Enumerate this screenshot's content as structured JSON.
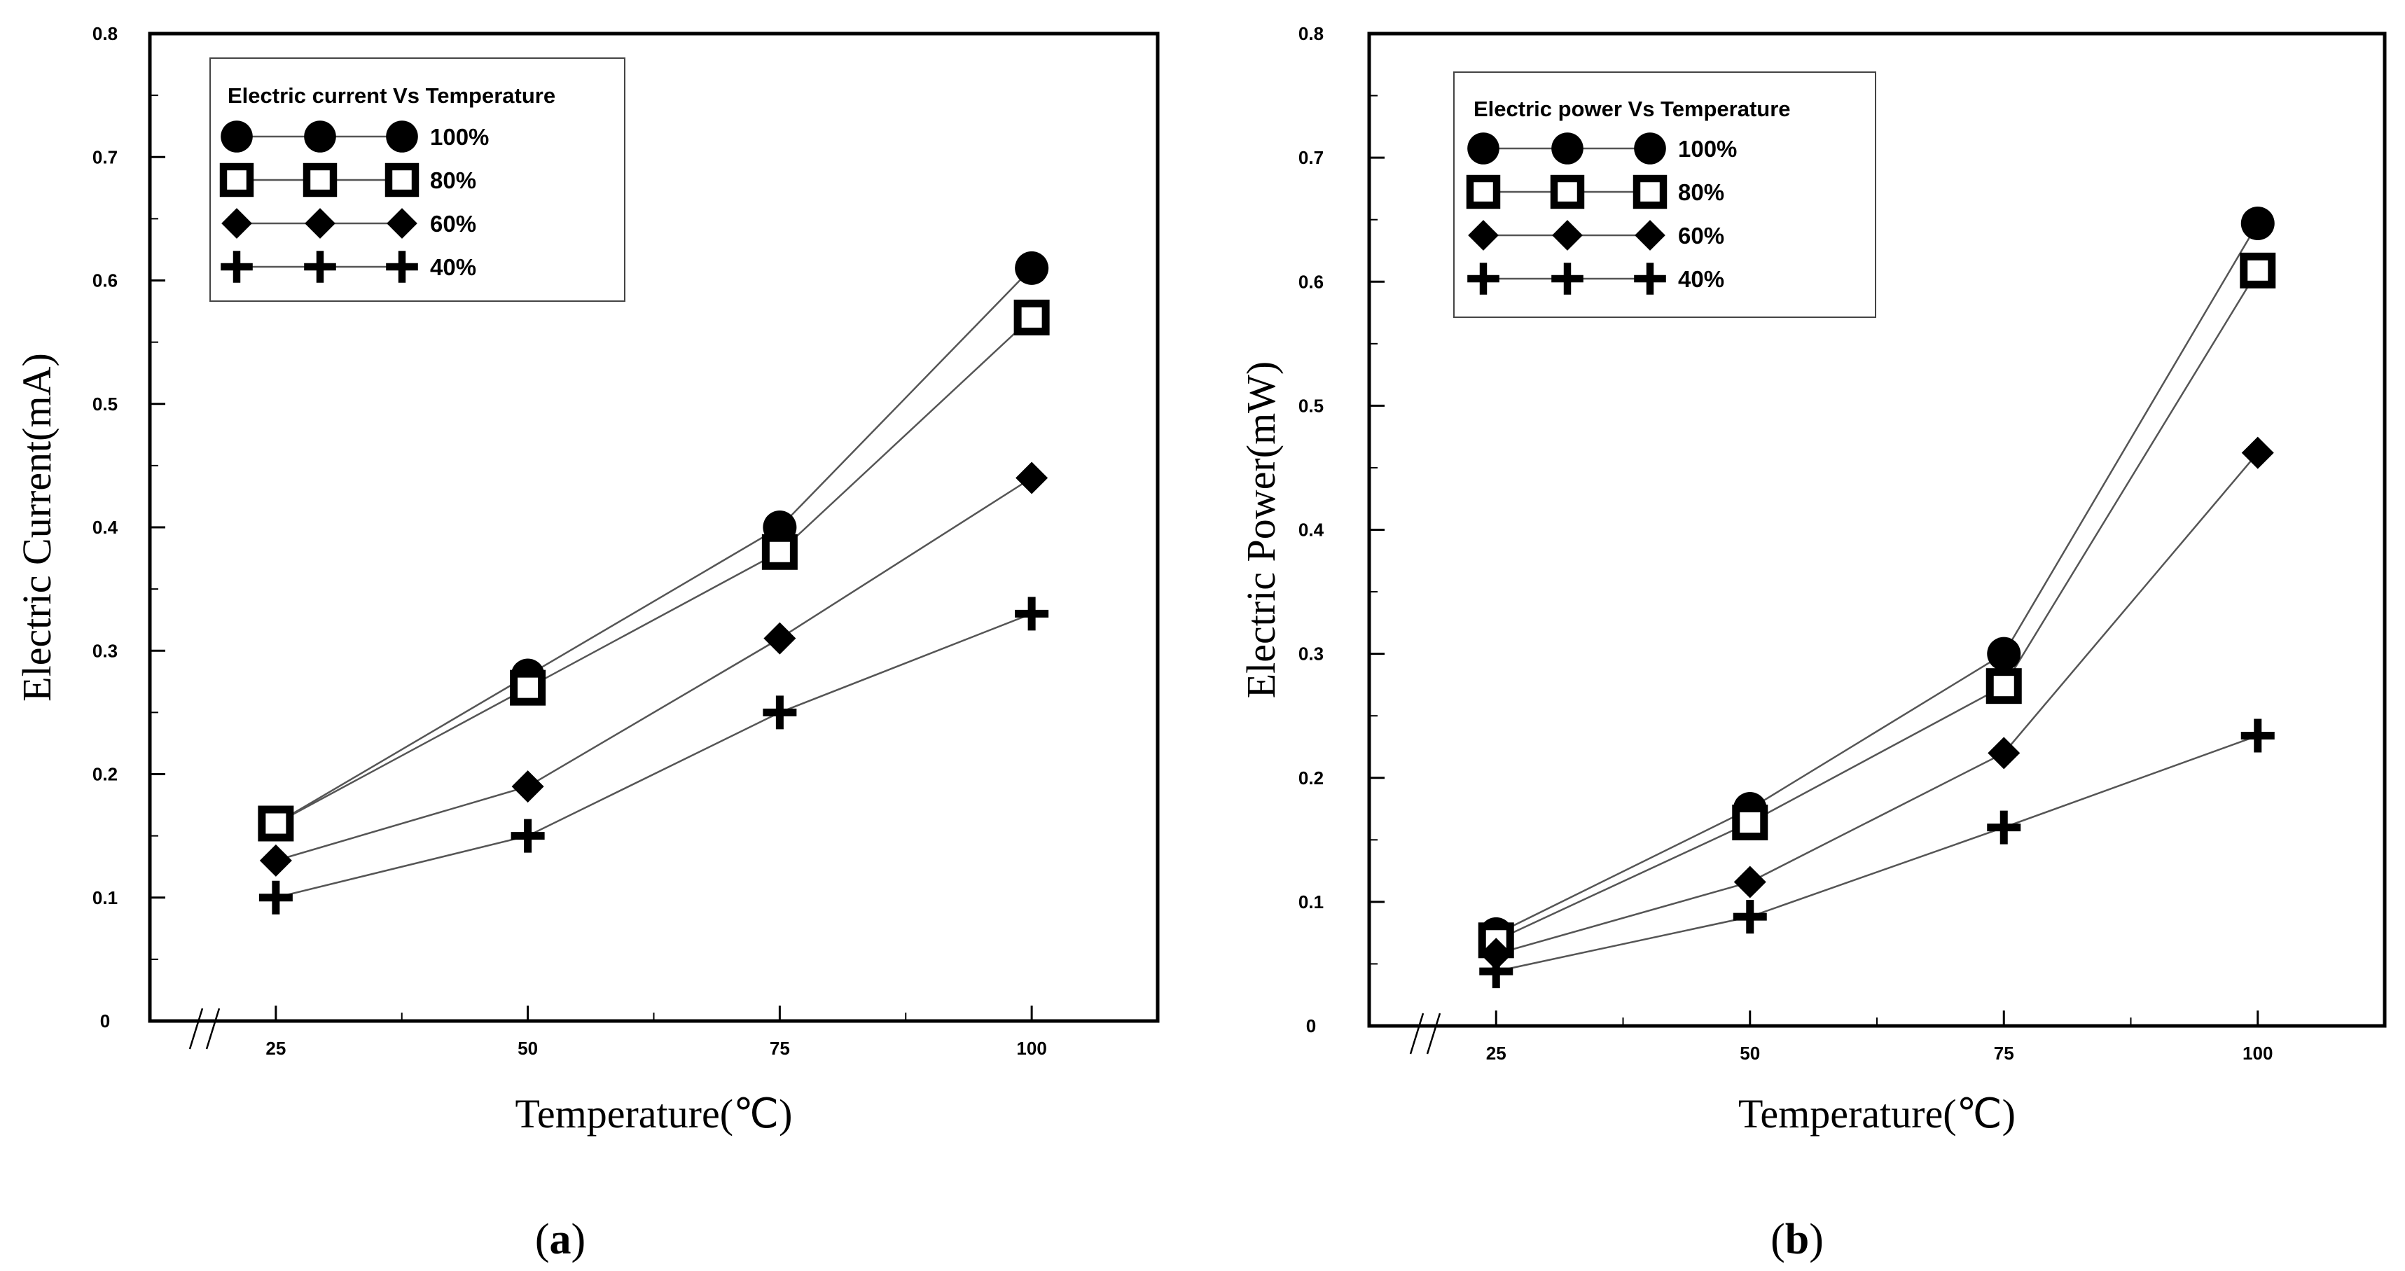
{
  "chart_data": [
    {
      "type": "line",
      "caption": "a",
      "xlabel": "Temperature(℃)",
      "ylabel": "Electric Current(mA)",
      "x": [
        25,
        50,
        75,
        100
      ],
      "x_tick_labels": [
        "25",
        "50",
        "75",
        "100"
      ],
      "y_tick_labels": [
        "0",
        "0.1",
        "0.2",
        "0.3",
        "0.4",
        "0.5",
        "0.6",
        "0.7",
        "0.8"
      ],
      "ylim": [
        0,
        0.8
      ],
      "xlim": [
        12.5,
        112.5
      ],
      "axis_break": true,
      "legend_title": "Electric current Vs Temperature",
      "legend_position": "top-left",
      "grid": false,
      "series": [
        {
          "name": "100%",
          "marker": "circle",
          "values": [
            0.16,
            0.28,
            0.4,
            0.61
          ]
        },
        {
          "name": "80%",
          "marker": "square",
          "values": [
            0.16,
            0.27,
            0.38,
            0.57
          ]
        },
        {
          "name": "60%",
          "marker": "diamond",
          "values": [
            0.13,
            0.19,
            0.31,
            0.44
          ]
        },
        {
          "name": "40%",
          "marker": "plus",
          "values": [
            0.1,
            0.15,
            0.25,
            0.33
          ]
        }
      ]
    },
    {
      "type": "line",
      "caption": "b",
      "xlabel": "Temperature(℃)",
      "ylabel": "Electric Power(mW)",
      "x": [
        25,
        50,
        75,
        100
      ],
      "x_tick_labels": [
        "25",
        "50",
        "75",
        "100"
      ],
      "y_tick_labels": [
        "0",
        "0.1",
        "0.2",
        "0.3",
        "0.4",
        "0.5",
        "0.6",
        "0.7",
        "0.8"
      ],
      "ylim": [
        0,
        0.8
      ],
      "xlim": [
        12.5,
        112.5
      ],
      "axis_break": true,
      "legend_title": "Electric power  Vs Temperature",
      "legend_position": "top-left",
      "grid": false,
      "series": [
        {
          "name": "100%",
          "marker": "circle",
          "values": [
            0.074,
            0.175,
            0.3,
            0.647
          ]
        },
        {
          "name": "80%",
          "marker": "square",
          "values": [
            0.069,
            0.164,
            0.274,
            0.609
          ]
        },
        {
          "name": "60%",
          "marker": "diamond",
          "values": [
            0.058,
            0.116,
            0.22,
            0.462
          ]
        },
        {
          "name": "40%",
          "marker": "plus",
          "values": [
            0.044,
            0.088,
            0.16,
            0.234
          ]
        }
      ]
    }
  ],
  "colors": {
    "ink": "#000000",
    "line": "#555555",
    "background": "#ffffff"
  }
}
